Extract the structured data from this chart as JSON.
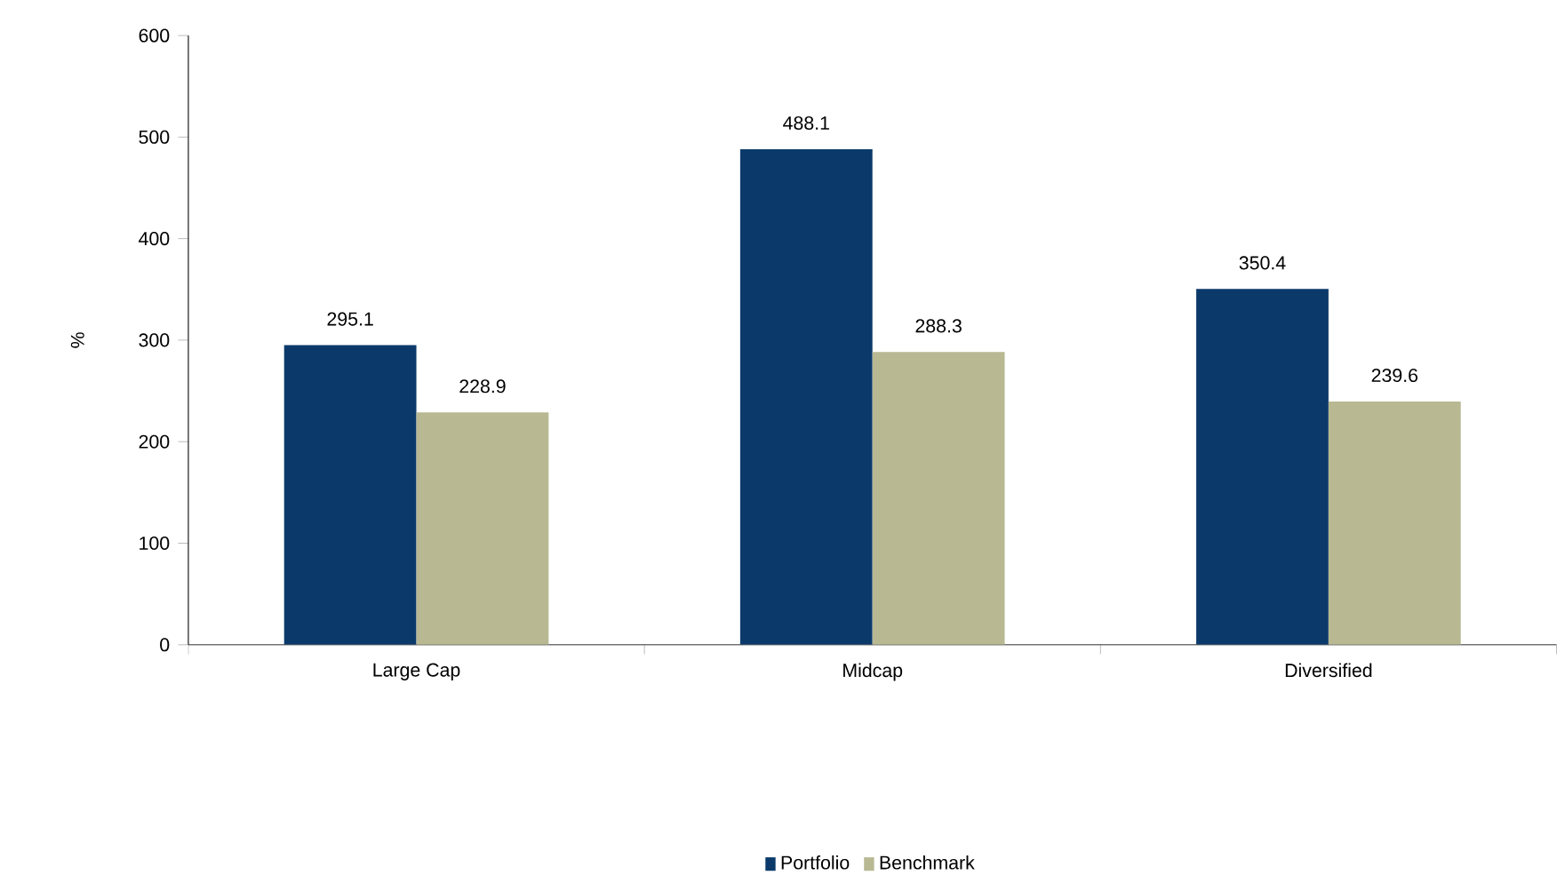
{
  "chart_data": {
    "type": "bar",
    "ylabel": "%",
    "categories": [
      "Large Cap",
      "Midcap",
      "Diversified"
    ],
    "series": [
      {
        "name": "Portfolio",
        "color": "#0b3a6a",
        "values": [
          295.1,
          488.1,
          350.4
        ]
      },
      {
        "name": "Benchmark",
        "color": "#b8b893",
        "values": [
          228.9,
          288.3,
          239.6
        ]
      }
    ],
    "ylim": [
      0,
      600
    ],
    "yticks": [
      0,
      100,
      200,
      300,
      400,
      500,
      600
    ],
    "data_labels": true,
    "legend": "bottom",
    "grid": false
  }
}
